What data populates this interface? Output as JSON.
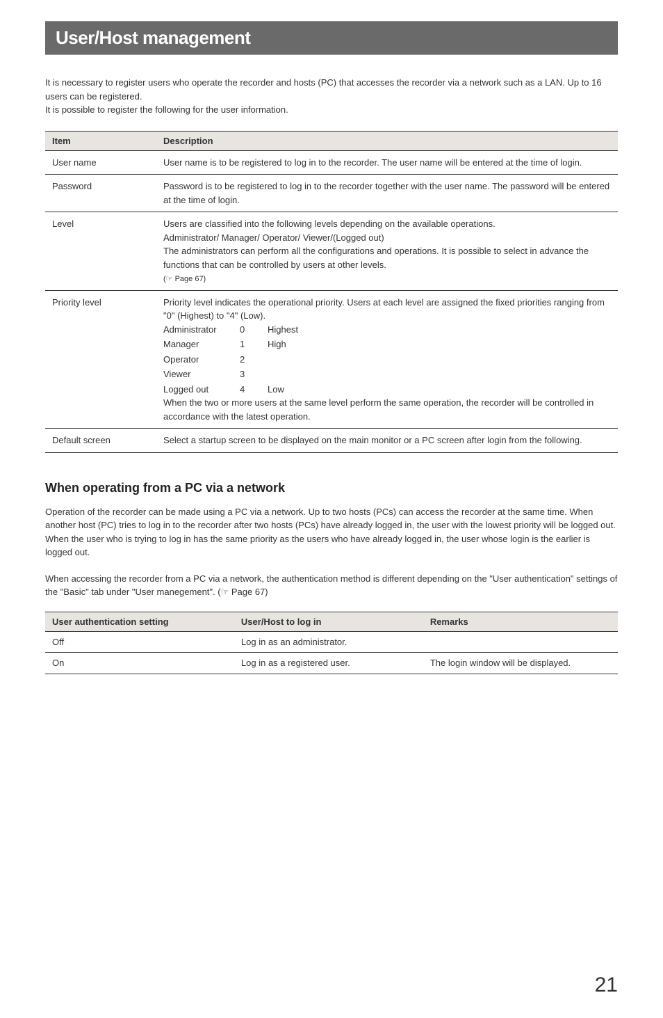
{
  "page": {
    "title": "User/Host management",
    "number": "21"
  },
  "intro": {
    "line1": "It is necessary to register users who operate the recorder and hosts (PC) that accesses the recorder via a network such as a LAN. Up to 16 users can be registered.",
    "line2": "It is possible to register the following for the user information."
  },
  "table1": {
    "headers": {
      "item": "Item",
      "description": "Description"
    },
    "rows": {
      "username": {
        "item": "User name",
        "description": "User name is to be registered to log in to the recorder. The user name will be entered at the time of login."
      },
      "password": {
        "item": "Password",
        "description": "Password is to be registered to log in to the recorder together with the user name. The password will be entered at the time of login."
      },
      "level": {
        "item": "Level",
        "line1": "Users are classified into the following levels depending on the available operations.",
        "line2": "Administrator/ Manager/ Operator/ Viewer/(Logged out)",
        "line3": "The administrators can perform all the configurations and operations. It is possible to select in advance the functions that can be controlled by users at other levels.",
        "line4": "(☞ Page 67)"
      },
      "priority": {
        "item": "Priority level",
        "intro": "Priority level indicates the operational priority. Users at each level are assigned the fixed priorities ranging from \"0\" (Highest) to \"4\" (Low).",
        "grid": {
          "r1c1": "Administrator",
          "r1c2": "0",
          "r1c3": "Highest",
          "r2c1": "Manager",
          "r2c2": "1",
          "r2c3": "High",
          "r3c1": "Operator",
          "r3c2": "2",
          "r3c3": "",
          "r4c1": "Viewer",
          "r4c2": "3",
          "r4c3": "",
          "r5c1": "Logged out",
          "r5c2": "4",
          "r5c3": "Low"
        },
        "outro": "When the two or more users at the same level perform the same operation, the recorder will be controlled in accordance with the latest operation."
      },
      "defaultscreen": {
        "item": "Default screen",
        "description": "Select a startup screen to be displayed on the main monitor or a PC screen after login from the following."
      }
    }
  },
  "section": {
    "heading": "When operating from a PC via a network",
    "para1": "Operation of the recorder can be made using a PC via a network. Up to two hosts (PCs) can access the recorder at the same time. When another host (PC) tries to log in to the recorder after two hosts (PCs) have already logged in, the user with the lowest priority will be logged out. When the user who is trying to log in has the same priority as the users who have already logged in, the user whose login is the earlier is logged out.",
    "para2": "When accessing the recorder from a PC via a network, the authentication method is different depending on the \"User authentication\" settings of the \"Basic\" tab under \"User manegement\". (☞ Page 67)"
  },
  "table2": {
    "headers": {
      "setting": "User authentication setting",
      "login": "User/Host to log in",
      "remarks": "Remarks"
    },
    "rows": {
      "off": {
        "setting": "Off",
        "login": "Log in as an administrator.",
        "remarks": ""
      },
      "on": {
        "setting": "On",
        "login": "Log in as a registered user.",
        "remarks": "The login window will be displayed."
      }
    }
  }
}
